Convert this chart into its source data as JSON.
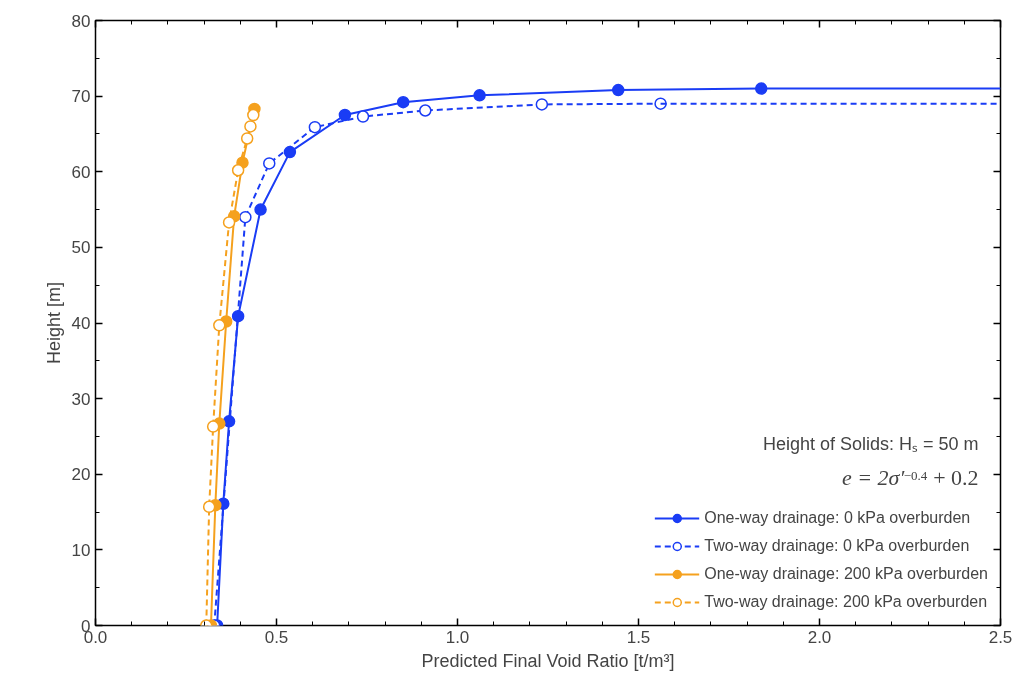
{
  "chart_data": {
    "type": "line",
    "xlabel": "Predicted Final Void Ratio [t/m³]",
    "ylabel": "Height [m]",
    "xlim": [
      0,
      2.5
    ],
    "ylim": [
      0,
      80
    ],
    "xticks": [
      {
        "value": 0,
        "label": "0.0"
      },
      {
        "value": 0.1,
        "label": null
      },
      {
        "value": 0.2,
        "label": null
      },
      {
        "value": 0.3,
        "label": null
      },
      {
        "value": 0.4,
        "label": null
      },
      0.5,
      {
        "value": 0.6,
        "label": null
      },
      {
        "value": 0.7,
        "label": null
      },
      {
        "value": 0.8,
        "label": null
      },
      {
        "value": 0.9,
        "label": null
      },
      {
        "value": 1,
        "label": "1.0"
      },
      {
        "value": 1.1,
        "label": null
      },
      {
        "value": 1.2,
        "label": null
      },
      {
        "value": 1.3,
        "label": null
      },
      {
        "value": 1.4,
        "label": null
      },
      1.5,
      {
        "value": 1.6,
        "label": null
      },
      {
        "value": 1.7,
        "label": null
      },
      {
        "value": 1.8,
        "label": null
      },
      {
        "value": 1.9,
        "label": null
      },
      {
        "value": 2,
        "label": "2.0"
      },
      {
        "value": 2.1,
        "label": null
      },
      {
        "value": 2.2,
        "label": null
      },
      {
        "value": 2.3,
        "label": null
      },
      {
        "value": 2.4,
        "label": null
      },
      2.5
    ],
    "yticks": [
      0,
      {
        "value": 5,
        "label": null
      },
      10,
      {
        "value": 15,
        "label": null
      },
      20,
      {
        "value": 25,
        "label": null
      },
      30,
      {
        "value": 35,
        "label": null
      },
      40,
      {
        "value": 45,
        "label": null
      },
      50,
      {
        "value": 55,
        "label": null
      },
      60,
      {
        "value": 65,
        "label": null
      },
      70,
      {
        "value": 75,
        "label": null
      },
      80
    ],
    "grid": false,
    "legend": "bottom right",
    "marker": "circle",
    "annotations": [
      "Height of Solids: Hₛ = 50 m",
      "e = 2σ′$^{−0.4}$ + 0.2"
    ],
    "series": [
      {
        "name": "One-way drainage: 0 kPa overburden",
        "color": "#1a3cf5",
        "line_style": "solid",
        "x": [
          0.336,
          0.353,
          0.369,
          0.394,
          0.456,
          0.537,
          0.689,
          0.85,
          1.061,
          1.444,
          1.839
        ],
        "values": [
          0,
          16.1,
          27.0,
          40.9,
          55.0,
          62.6,
          67.5,
          69.2,
          70.1,
          70.8,
          71.0
        ]
      },
      {
        "name": "Two-way drainage: 0 kPa overburden",
        "color": "#1a3cf5",
        "line_style": "dashed",
        "x": [
          0.328,
          0.414,
          0.48,
          0.606,
          0.739,
          0.911,
          1.233,
          1.561
        ],
        "values": [
          0,
          54.0,
          61.1,
          65.9,
          67.3,
          68.1,
          68.9,
          69.0
        ]
      },
      {
        "name": "One-way drainage: 200 kPa overburden",
        "color": "#f5a11e",
        "line_style": "solid",
        "x": [
          0.319,
          0.331,
          0.342,
          0.361,
          0.383,
          0.406,
          0.435,
          0.439
        ],
        "values": [
          0,
          15.9,
          26.7,
          40.2,
          54.1,
          61.2,
          null,
          68.3
        ]
      },
      {
        "name": "Two-way drainage: 200 kPa overburden",
        "color": "#f5a11e",
        "line_style": "dashed",
        "x": [
          0.306,
          0.314,
          0.325,
          0.342,
          0.369,
          0.394,
          0.419,
          0.428,
          0.436
        ],
        "values": [
          0,
          15.7,
          26.3,
          39.7,
          53.3,
          60.2,
          64.4,
          66.0,
          67.5
        ]
      },
      {
        "type": "line",
        "marker": "none",
        "color": "#1a3cf5",
        "line_style": "solid",
        "x": [
          1.839,
          2.5
        ],
        "values": [
          71.0,
          71.0
        ]
      },
      {
        "type": "line",
        "marker": "none",
        "color": "#1a3cf5",
        "line_style": "dashed",
        "x": [
          1.561,
          2.5
        ],
        "values": [
          69.0,
          69.0
        ]
      }
    ]
  }
}
